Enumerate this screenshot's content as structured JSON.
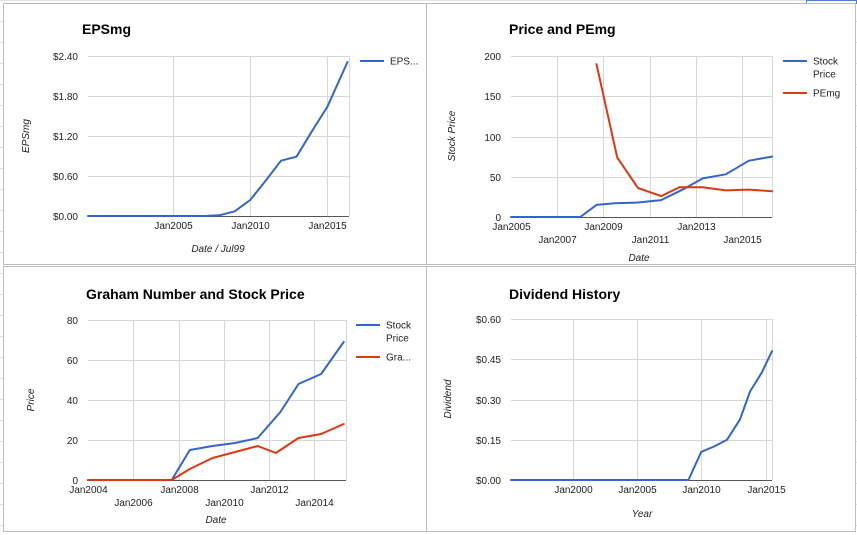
{
  "chart_data": [
    {
      "type": "line",
      "title": "EPSmg",
      "xlabel": "Date / Jul99",
      "ylabel": "EPSmg",
      "xlim": [
        1999.5,
        2016.4
      ],
      "ylim": [
        0,
        2.4
      ],
      "y_ticks": [
        0,
        0.6,
        1.2,
        1.8,
        2.4
      ],
      "y_tick_labels": [
        "$0.00",
        "$0.60",
        "$1.20",
        "$1.80",
        "$2.40"
      ],
      "x_ticks": [
        {
          "x": 2005,
          "label": "Jan2005",
          "row": 1
        },
        {
          "x": 2010,
          "label": "Jan2010",
          "row": 1
        },
        {
          "x": 2015,
          "label": "Jan2015",
          "row": 1
        }
      ],
      "legend_position": "right",
      "series": [
        {
          "name": "EPS...",
          "color": "#3366cc",
          "x": [
            1999.5,
            2007.0,
            2008.0,
            2009.0,
            2010.0,
            2011.0,
            2012.0,
            2013.0,
            2014.0,
            2015.0,
            2016.3
          ],
          "y": [
            0,
            0,
            0.01,
            0.07,
            0.24,
            0.53,
            0.83,
            0.89,
            1.27,
            1.64,
            2.31
          ]
        }
      ]
    },
    {
      "type": "line",
      "title": "Price and PEmg",
      "xlabel": "Date",
      "ylabel": "Stock Price",
      "xlim": [
        2005,
        2016.3
      ],
      "ylim": [
        0,
        200
      ],
      "y_ticks": [
        0,
        50,
        100,
        150,
        200
      ],
      "y_tick_labels": [
        "0",
        "50",
        "100",
        "150",
        "200"
      ],
      "x_ticks": [
        {
          "x": 2005,
          "label": "Jan2005",
          "row": 1
        },
        {
          "x": 2007,
          "label": "Jan2007",
          "row": 2
        },
        {
          "x": 2009,
          "label": "Jan2009",
          "row": 1
        },
        {
          "x": 2011,
          "label": "Jan2011",
          "row": 2
        },
        {
          "x": 2013,
          "label": "Jan2013",
          "row": 1
        },
        {
          "x": 2015,
          "label": "Jan2015",
          "row": 2
        }
      ],
      "legend_position": "right",
      "series": [
        {
          "name": "Stock Price",
          "color": "#3366cc",
          "x": [
            2005,
            2006,
            2007,
            2008.0,
            2008.7,
            2009.5,
            2010.5,
            2011.5,
            2012.5,
            2013.3,
            2014.3,
            2015.3,
            2016.3
          ],
          "y": [
            0,
            0,
            0,
            0,
            15,
            17,
            18,
            21,
            35,
            48,
            53,
            70,
            75
          ]
        },
        {
          "name": "PEmg",
          "color": "#dc3912",
          "x": [
            2008.7,
            2009.6,
            2010.5,
            2011.5,
            2012.3,
            2013.3,
            2014.3,
            2015.3,
            2016.3
          ],
          "y": [
            190,
            74,
            36,
            26,
            37,
            37,
            33,
            34,
            32
          ]
        }
      ]
    },
    {
      "type": "line",
      "title": "Graham Number and Stock Price",
      "xlabel": "Date",
      "ylabel": "Price",
      "xlim": [
        2004,
        2015.4
      ],
      "ylim": [
        0,
        80
      ],
      "y_ticks": [
        0,
        20,
        40,
        60,
        80
      ],
      "y_tick_labels": [
        "0",
        "20",
        "40",
        "60",
        "80"
      ],
      "x_ticks": [
        {
          "x": 2004,
          "label": "Jan2004",
          "row": 1
        },
        {
          "x": 2006,
          "label": "Jan2006",
          "row": 2
        },
        {
          "x": 2008,
          "label": "Jan2008",
          "row": 1
        },
        {
          "x": 2010,
          "label": "Jan2010",
          "row": 2
        },
        {
          "x": 2012,
          "label": "Jan2012",
          "row": 1
        },
        {
          "x": 2014,
          "label": "Jan2014",
          "row": 2
        }
      ],
      "legend_position": "right",
      "series": [
        {
          "name": "Stock Price",
          "color": "#3366cc",
          "x": [
            2004,
            2005,
            2006,
            2007.7,
            2008.5,
            2009.5,
            2010.5,
            2011.5,
            2012.5,
            2013.3,
            2014.3,
            2015.3
          ],
          "y": [
            0,
            0,
            0,
            0,
            15,
            17,
            18.5,
            21,
            34,
            48,
            53,
            69
          ]
        },
        {
          "name": "Gra...",
          "color": "#dc3912",
          "x": [
            2004,
            2005,
            2006,
            2007.7,
            2008.5,
            2009.5,
            2010.5,
            2011.5,
            2012.3,
            2013.3,
            2014.3,
            2015.3
          ],
          "y": [
            0,
            0,
            0,
            0,
            5.5,
            11,
            14,
            17,
            13.5,
            21,
            23,
            28
          ]
        }
      ]
    },
    {
      "type": "line",
      "title": "Dividend History",
      "xlabel": "Year",
      "ylabel": "Dividend",
      "xlim": [
        1995.2,
        2015.5
      ],
      "ylim": [
        0,
        0.6
      ],
      "y_ticks": [
        0,
        0.15,
        0.3,
        0.45,
        0.6
      ],
      "y_tick_labels": [
        "$0.00",
        "$0.15",
        "$0.30",
        "$0.45",
        "$0.60"
      ],
      "x_ticks": [
        {
          "x": 2000,
          "label": "Jan2000",
          "row": 1
        },
        {
          "x": 2005,
          "label": "Jan2005",
          "row": 1
        },
        {
          "x": 2010,
          "label": "Jan2010",
          "row": 1
        },
        {
          "x": 2015,
          "label": "Jan2015",
          "row": 1
        }
      ],
      "legend_position": "none",
      "series": [
        {
          "color": "#3366cc",
          "x": [
            1995.2,
            2000,
            2005,
            2009.0,
            2010.0,
            2011.0,
            2012.0,
            2013.0,
            2013.8,
            2014.7,
            2015.5
          ],
          "y": [
            0,
            0,
            0,
            0,
            0.105,
            0.125,
            0.15,
            0.225,
            0.33,
            0.4,
            0.48
          ]
        }
      ]
    }
  ]
}
